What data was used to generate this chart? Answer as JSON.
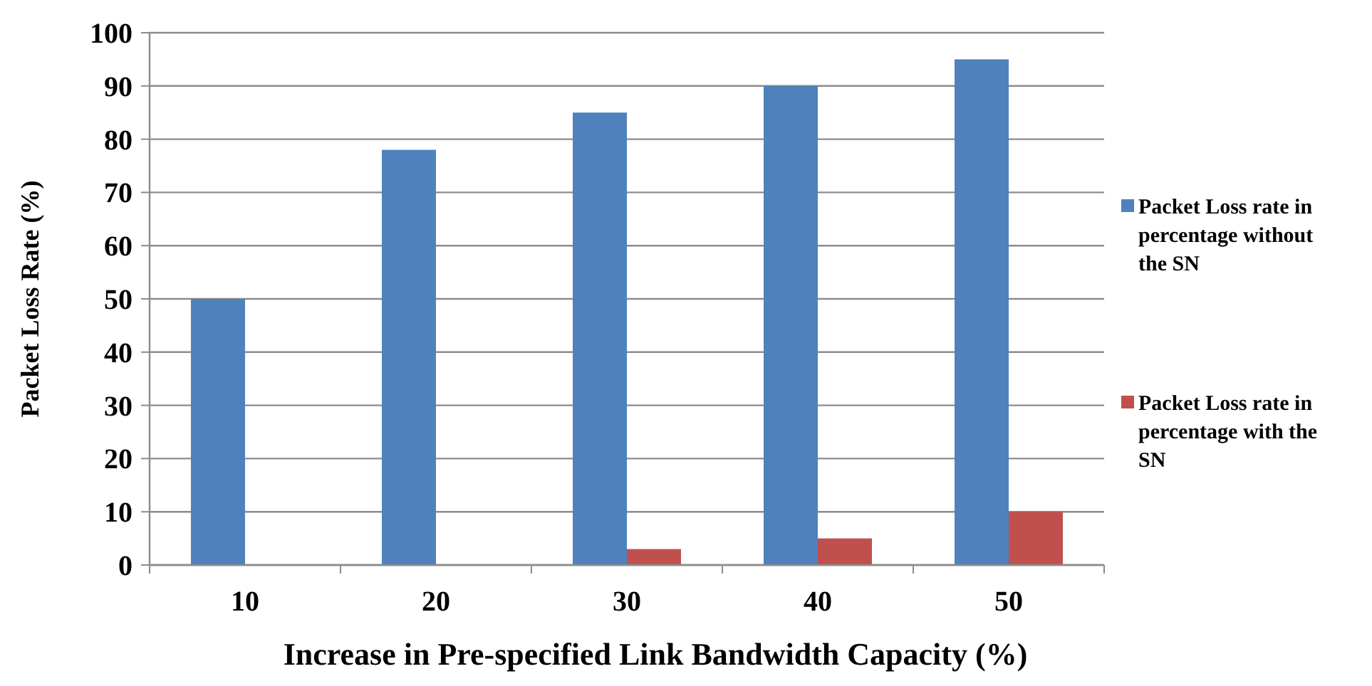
{
  "chart_data": {
    "type": "bar",
    "xlabel": "Increase in Pre-specified Link Bandwidth Capacity (%)",
    "ylabel": "Packet Loss Rate (%)",
    "categories": [
      "10",
      "20",
      "30",
      "40",
      "50"
    ],
    "series": [
      {
        "name": "Packet Loss rate in percentage without the SN",
        "color": "#4f81bd",
        "values": [
          50,
          78,
          85,
          90,
          95
        ]
      },
      {
        "name": "Packet Loss rate in percentage with the SN",
        "color": "#c0504d",
        "values": [
          0,
          0,
          3,
          5,
          10
        ]
      }
    ],
    "ylim": [
      0,
      100
    ],
    "yticks": [
      0,
      10,
      20,
      30,
      40,
      50,
      60,
      70,
      80,
      90,
      100
    ],
    "grid": "y",
    "legend": "right"
  }
}
